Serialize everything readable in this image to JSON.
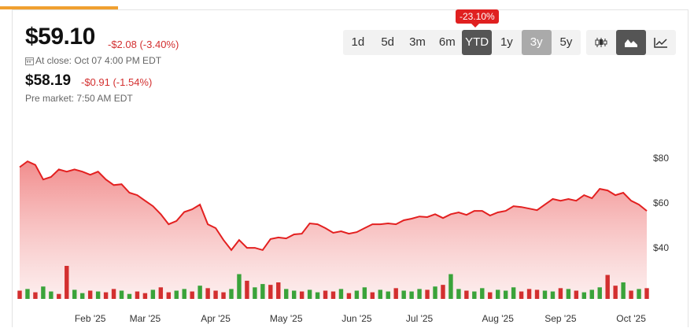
{
  "header": {
    "price": "$59.10",
    "change": "-$2.08 (-3.40%)",
    "close_time": "At close: Oct 07 4:00 PM EDT",
    "pre_price": "$58.19",
    "pre_change": "-$0.91 (-1.54%)",
    "pre_time": "Pre market: 7:50 AM EDT"
  },
  "range_buttons": [
    "1d",
    "5d",
    "3m",
    "6m",
    "YTD",
    "1y",
    "3y",
    "5y"
  ],
  "range_tooltip": "-23.10%",
  "chart_data": {
    "type": "area",
    "categories": [
      null,
      null,
      null,
      null,
      null,
      null,
      null,
      null,
      null,
      "Feb '25",
      null,
      null,
      null,
      null,
      null,
      null,
      "Mar '25",
      null,
      null,
      null,
      null,
      null,
      null,
      null,
      null,
      "Apr '25",
      null,
      null,
      null,
      null,
      null,
      null,
      null,
      null,
      "May '25",
      null,
      null,
      null,
      null,
      null,
      null,
      null,
      null,
      "Jun '25",
      null,
      null,
      null,
      null,
      null,
      null,
      null,
      "Jul '25",
      null,
      null,
      null,
      null,
      null,
      null,
      null,
      null,
      null,
      "Aug '25",
      null,
      null,
      null,
      null,
      null,
      null,
      null,
      "Sep '25",
      null,
      null,
      null,
      null,
      null,
      null,
      null,
      null,
      "Oct '25",
      null,
      null
    ],
    "series": [
      {
        "color": "#e32020",
        "values": [
          76,
          78.6,
          77,
          70.5,
          71.6,
          75,
          74,
          75,
          74,
          72.6,
          74,
          70.5,
          68,
          68.4,
          64.6,
          63.5,
          61,
          58.6,
          55,
          50.5,
          52,
          56,
          57.2,
          59.3,
          50.5,
          48.8,
          43.5,
          39,
          43.5,
          40,
          40,
          39,
          43.9,
          44.6,
          44.2,
          46,
          46.3,
          50.9,
          50.5,
          48.8,
          46.7,
          47.4,
          46.3,
          47,
          48.8,
          50.5,
          50.5,
          50.9,
          50.5,
          52.3,
          53,
          54,
          53.7,
          55,
          53.3,
          55,
          55.8,
          54.7,
          56.5,
          56.5,
          54.4,
          55.8,
          56.5,
          58.6,
          58.2,
          57.5,
          56.8,
          59.3,
          61.8,
          61,
          61.8,
          61,
          63.5,
          62.1,
          66.3,
          65.6,
          63.5,
          64.6,
          61,
          59.3,
          56.5
        ]
      }
    ],
    "volume": [
      10,
      12,
      8,
      15,
      9,
      6,
      40,
      11,
      7,
      10,
      9,
      8,
      12,
      10,
      6,
      9,
      7,
      11,
      14,
      8,
      10,
      12,
      9,
      16,
      13,
      10,
      8,
      12,
      30,
      22,
      14,
      18,
      17,
      20,
      12,
      10,
      9,
      11,
      8,
      10,
      9,
      12,
      7,
      10,
      14,
      8,
      11,
      9,
      13,
      10,
      9,
      12,
      11,
      15,
      17,
      30,
      12,
      10,
      9,
      13,
      8,
      11,
      10,
      14,
      9,
      12,
      11,
      10,
      9,
      13,
      12,
      10,
      8,
      11,
      14,
      29,
      16,
      20,
      10,
      12,
      13
    ],
    "volume_up": [
      0,
      1,
      0,
      1,
      1,
      0,
      0,
      1,
      1,
      0,
      1,
      0,
      0,
      1,
      1,
      0,
      0,
      1,
      0,
      0,
      1,
      1,
      0,
      1,
      0,
      0,
      0,
      1,
      1,
      0,
      1,
      1,
      0,
      0,
      1,
      1,
      0,
      1,
      1,
      0,
      0,
      1,
      0,
      1,
      1,
      0,
      1,
      1,
      0,
      1,
      1,
      1,
      0,
      1,
      0,
      1,
      1,
      0,
      1,
      1,
      0,
      1,
      1,
      1,
      0,
      0,
      0,
      1,
      1,
      0,
      1,
      0,
      1,
      1,
      1,
      0,
      0,
      1,
      0,
      1,
      0
    ],
    "up_color": "#3aa33a",
    "down_color": "#d32f2f",
    "ylim": [
      17.2,
      83.9
    ],
    "yticks": [
      {
        "value": 40,
        "label": "$40"
      },
      {
        "value": 60,
        "label": "$60"
      },
      {
        "value": 80,
        "label": "$80"
      }
    ]
  }
}
